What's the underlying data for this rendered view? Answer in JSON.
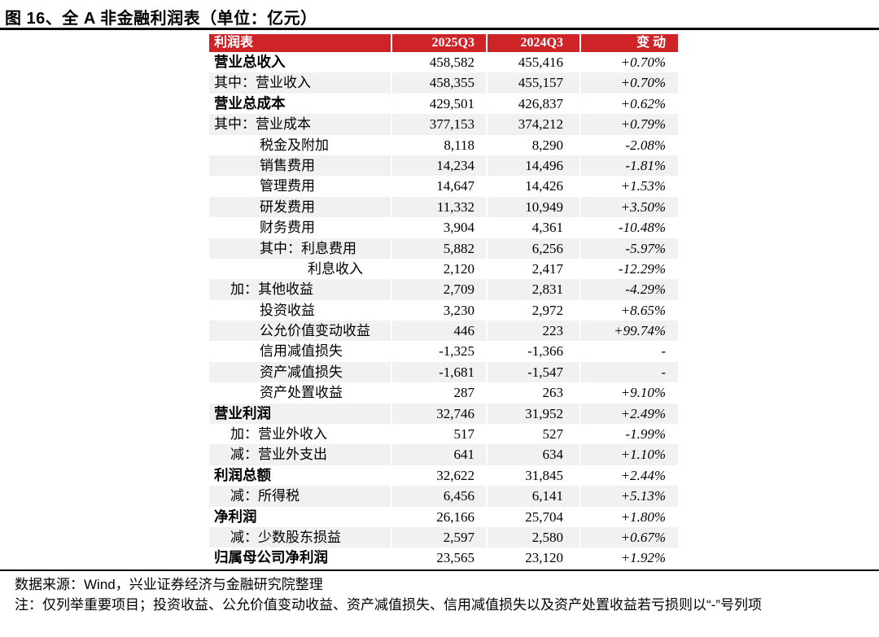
{
  "figure_title": "图 16、全 A 非金融利润表（单位：亿元）",
  "colors": {
    "header_bg": "#CE2428",
    "row_alt": "#F1F1F1",
    "header_text": "#FFFFFF"
  },
  "table": {
    "columns": [
      "利润表",
      "2025Q3",
      "2024Q3",
      "变 动"
    ],
    "rows": [
      {
        "label": "营业总收入",
        "indent": 0,
        "bold": true,
        "q3_2025": "458,582",
        "q3_2024": "455,416",
        "change": "+0.70%"
      },
      {
        "label": "其中：营业收入",
        "indent": 0,
        "bold": false,
        "q3_2025": "458,355",
        "q3_2024": "455,157",
        "change": "+0.70%"
      },
      {
        "label": "营业总成本",
        "indent": 0,
        "bold": true,
        "q3_2025": "429,501",
        "q3_2024": "426,837",
        "change": "+0.62%"
      },
      {
        "label": "其中：营业成本",
        "indent": 0,
        "bold": false,
        "q3_2025": "377,153",
        "q3_2024": "374,212",
        "change": "+0.79%"
      },
      {
        "label": "税金及附加",
        "indent": 2,
        "bold": false,
        "q3_2025": "8,118",
        "q3_2024": "8,290",
        "change": "-2.08%"
      },
      {
        "label": "销售费用",
        "indent": 2,
        "bold": false,
        "q3_2025": "14,234",
        "q3_2024": "14,496",
        "change": "-1.81%"
      },
      {
        "label": "管理费用",
        "indent": 2,
        "bold": false,
        "q3_2025": "14,647",
        "q3_2024": "14,426",
        "change": "+1.53%"
      },
      {
        "label": "研发费用",
        "indent": 2,
        "bold": false,
        "q3_2025": "11,332",
        "q3_2024": "10,949",
        "change": "+3.50%"
      },
      {
        "label": "财务费用",
        "indent": 2,
        "bold": false,
        "q3_2025": "3,904",
        "q3_2024": "4,361",
        "change": "-10.48%"
      },
      {
        "label": "其中：利息费用",
        "indent": 2,
        "bold": false,
        "q3_2025": "5,882",
        "q3_2024": "6,256",
        "change": "-5.97%"
      },
      {
        "label": "利息收入",
        "indent": 3,
        "bold": false,
        "q3_2025": "2,120",
        "q3_2024": "2,417",
        "change": "-12.29%"
      },
      {
        "label": "加：其他收益",
        "indent": 1,
        "bold": false,
        "q3_2025": "2,709",
        "q3_2024": "2,831",
        "change": "-4.29%"
      },
      {
        "label": "投资收益",
        "indent": 2,
        "bold": false,
        "q3_2025": "3,230",
        "q3_2024": "2,972",
        "change": "+8.65%"
      },
      {
        "label": "公允价值变动收益",
        "indent": 2,
        "bold": false,
        "q3_2025": "446",
        "q3_2024": "223",
        "change": "+99.74%"
      },
      {
        "label": "信用减值损失",
        "indent": 2,
        "bold": false,
        "q3_2025": "-1,325",
        "q3_2024": "-1,366",
        "change": "-"
      },
      {
        "label": "资产减值损失",
        "indent": 2,
        "bold": false,
        "q3_2025": "-1,681",
        "q3_2024": "-1,547",
        "change": "-"
      },
      {
        "label": "资产处置收益",
        "indent": 2,
        "bold": false,
        "q3_2025": "287",
        "q3_2024": "263",
        "change": "+9.10%"
      },
      {
        "label": "营业利润",
        "indent": 0,
        "bold": true,
        "q3_2025": "32,746",
        "q3_2024": "31,952",
        "change": "+2.49%"
      },
      {
        "label": "加：营业外收入",
        "indent": 1,
        "bold": false,
        "q3_2025": "517",
        "q3_2024": "527",
        "change": "-1.99%"
      },
      {
        "label": "减：营业外支出",
        "indent": 1,
        "bold": false,
        "q3_2025": "641",
        "q3_2024": "634",
        "change": "+1.10%"
      },
      {
        "label": "利润总额",
        "indent": 0,
        "bold": true,
        "q3_2025": "32,622",
        "q3_2024": "31,845",
        "change": "+2.44%"
      },
      {
        "label": "减：所得税",
        "indent": 1,
        "bold": false,
        "q3_2025": "6,456",
        "q3_2024": "6,141",
        "change": "+5.13%"
      },
      {
        "label": "净利润",
        "indent": 0,
        "bold": true,
        "q3_2025": "26,166",
        "q3_2024": "25,704",
        "change": "+1.80%"
      },
      {
        "label": "减：少数股东损益",
        "indent": 1,
        "bold": false,
        "q3_2025": "2,597",
        "q3_2024": "2,580",
        "change": "+0.67%"
      },
      {
        "label": "归属母公司净利润",
        "indent": 0,
        "bold": true,
        "q3_2025": "23,565",
        "q3_2024": "23,120",
        "change": "+1.92%"
      }
    ]
  },
  "footer": {
    "source": "数据来源：Wind，兴业证券经济与金融研究院整理",
    "note": "注：仅列举重要项目；投资收益、公允价值变动收益、资产减值损失、信用减值损失以及资产处置收益若亏损则以“-”号列项"
  }
}
